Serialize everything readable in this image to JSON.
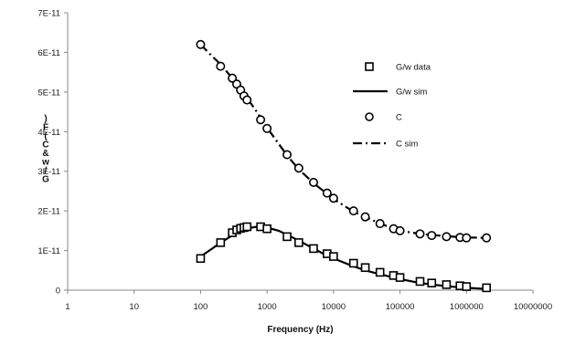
{
  "chart_data": {
    "type": "scatter",
    "xlabel": "Frequency (Hz)",
    "ylabel_chars": [
      ")",
      "F",
      "(",
      "C",
      "&",
      "w",
      "/",
      "G"
    ],
    "x_scale": "log",
    "xlim": [
      1,
      10000000
    ],
    "ylim": [
      0,
      7e-11
    ],
    "x_ticks": [
      "1",
      "10",
      "100",
      "1000",
      "10000",
      "100000",
      "1000000",
      "10000000"
    ],
    "y_ticks": [
      "0",
      "1E-11",
      "2E-11",
      "3E-11",
      "4E-11",
      "5E-11",
      "6E-11",
      "7E-11"
    ],
    "legend_placement": "right",
    "series": [
      {
        "name": "G/w data",
        "marker": "square",
        "x": [
          100,
          200,
          300,
          350,
          400,
          450,
          500,
          800,
          1000,
          2000,
          3000,
          5000,
          8000,
          10000,
          20000,
          30000,
          50000,
          80000,
          100000,
          200000,
          300000,
          500000,
          800000,
          1000000,
          2000000
        ],
        "y": [
          8e-12,
          1.2e-11,
          1.45e-11,
          1.52e-11,
          1.56e-11,
          1.58e-11,
          1.6e-11,
          1.6e-11,
          1.55e-11,
          1.35e-11,
          1.2e-11,
          1.05e-11,
          9.2e-12,
          8.5e-12,
          6.8e-12,
          5.7e-12,
          4.5e-12,
          3.7e-12,
          3.2e-12,
          2.2e-12,
          1.8e-12,
          1.4e-12,
          1.1e-12,
          9e-13,
          6e-13
        ]
      },
      {
        "name": "G/w sim",
        "line": "solid",
        "x": [
          100,
          150,
          200,
          300,
          400,
          500,
          700,
          1000,
          1500,
          2000,
          3000,
          5000,
          7000,
          10000,
          20000,
          30000,
          50000,
          100000,
          200000,
          500000,
          1000000,
          2000000
        ],
        "y": [
          8.5e-12,
          1.05e-11,
          1.2e-11,
          1.38e-11,
          1.5e-11,
          1.56e-11,
          1.6e-11,
          1.58e-11,
          1.5e-11,
          1.4e-11,
          1.25e-11,
          1.05e-11,
          9.2e-12,
          8e-12,
          6e-12,
          5e-12,
          4e-12,
          2.8e-12,
          1.8e-12,
          1e-12,
          6e-13,
          3e-13
        ]
      },
      {
        "name": "C",
        "marker": "circle",
        "x": [
          100,
          200,
          300,
          350,
          400,
          450,
          500,
          800,
          1000,
          2000,
          3000,
          5000,
          8000,
          10000,
          20000,
          30000,
          50000,
          80000,
          100000,
          200000,
          300000,
          500000,
          800000,
          1000000,
          2000000
        ],
        "y": [
          6.2e-11,
          5.65e-11,
          5.35e-11,
          5.2e-11,
          5.05e-11,
          4.9e-11,
          4.8e-11,
          4.3e-11,
          4.08e-11,
          3.42e-11,
          3.08e-11,
          2.72e-11,
          2.45e-11,
          2.32e-11,
          2e-11,
          1.85e-11,
          1.68e-11,
          1.55e-11,
          1.5e-11,
          1.42e-11,
          1.38e-11,
          1.35e-11,
          1.33e-11,
          1.32e-11,
          1.32e-11
        ]
      },
      {
        "name": "C sim",
        "line": "dashdot",
        "x": [
          100,
          150,
          200,
          300,
          500,
          700,
          1000,
          2000,
          3000,
          5000,
          10000,
          20000,
          50000,
          100000,
          200000,
          500000,
          1000000,
          2000000
        ],
        "y": [
          6.2e-11,
          5.9e-11,
          5.7e-11,
          5.35e-11,
          4.85e-11,
          4.5e-11,
          4.1e-11,
          3.4e-11,
          3.05e-11,
          2.7e-11,
          2.3e-11,
          1.98e-11,
          1.68e-11,
          1.5e-11,
          1.42e-11,
          1.36e-11,
          1.33e-11,
          1.32e-11
        ]
      }
    ]
  }
}
